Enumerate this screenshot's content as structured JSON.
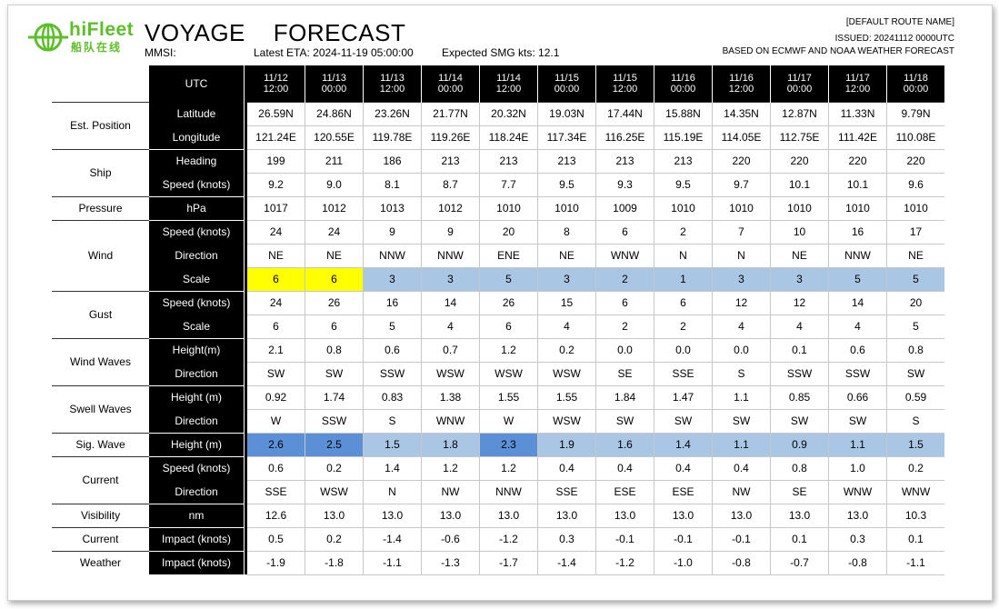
{
  "logo": {
    "brand": "hiFleet",
    "sub": "船队在线"
  },
  "title": "VOYAGE    FORECAST",
  "mmsi_label": "MMSI:",
  "eta": "Latest ETA: 2024-11-19 05:00:00",
  "smg": "Expected SMG kts: 12.1",
  "route_name": "[DEFAULT ROUTE NAME]",
  "issued": "ISSUED: 20241112 0000UTC",
  "basis": "BASED ON ECMWF AND NOAA WEATHER FORECAST",
  "colors": {
    "highlight_yellow": "#ffff00",
    "highlight_blue": "#5b8fd6",
    "light_blue": "#a9c6e4",
    "header_bg": "#000000"
  },
  "table": {
    "utc_label": "UTC",
    "times": [
      [
        "11/12",
        "12:00"
      ],
      [
        "11/13",
        "00:00"
      ],
      [
        "11/13",
        "12:00"
      ],
      [
        "11/14",
        "00:00"
      ],
      [
        "11/14",
        "12:00"
      ],
      [
        "11/15",
        "00:00"
      ],
      [
        "11/15",
        "12:00"
      ],
      [
        "11/16",
        "00:00"
      ],
      [
        "11/16",
        "12:00"
      ],
      [
        "11/17",
        "00:00"
      ],
      [
        "11/17",
        "12:00"
      ],
      [
        "11/18",
        "00:00"
      ]
    ],
    "groups": [
      {
        "name": "Est. Position",
        "rows": [
          {
            "label": "Latitude",
            "values": [
              "26.59N",
              "24.86N",
              "23.26N",
              "21.77N",
              "20.32N",
              "19.03N",
              "17.44N",
              "15.88N",
              "14.35N",
              "12.87N",
              "11.33N",
              "9.79N"
            ]
          },
          {
            "label": "Longitude",
            "values": [
              "121.24E",
              "120.55E",
              "119.78E",
              "119.26E",
              "118.24E",
              "117.34E",
              "116.25E",
              "115.19E",
              "114.05E",
              "112.75E",
              "111.42E",
              "110.08E"
            ]
          }
        ]
      },
      {
        "name": "Ship",
        "rows": [
          {
            "label": "Heading",
            "values": [
              "199",
              "211",
              "186",
              "213",
              "213",
              "213",
              "213",
              "213",
              "220",
              "220",
              "220",
              "220"
            ]
          },
          {
            "label": "Speed (knots)",
            "values": [
              "9.2",
              "9.0",
              "8.1",
              "8.7",
              "7.7",
              "9.5",
              "9.3",
              "9.5",
              "9.7",
              "10.1",
              "10.1",
              "9.6"
            ]
          }
        ]
      },
      {
        "name": "Pressure",
        "rows": [
          {
            "label": "hPa",
            "values": [
              "1017",
              "1012",
              "1013",
              "1012",
              "1010",
              "1010",
              "1009",
              "1010",
              "1010",
              "1010",
              "1010",
              "1010"
            ]
          }
        ]
      },
      {
        "name": "Wind",
        "rows": [
          {
            "label": "Speed (knots)",
            "values": [
              "24",
              "24",
              "9",
              "9",
              "20",
              "8",
              "6",
              "2",
              "7",
              "10",
              "16",
              "17"
            ]
          },
          {
            "label": "Direction",
            "values": [
              "NE",
              "NE",
              "NNW",
              "NNW",
              "ENE",
              "NE",
              "WNW",
              "N",
              "N",
              "NE",
              "NNW",
              "NE"
            ]
          },
          {
            "label": "Scale",
            "values": [
              "6",
              "6",
              "3",
              "3",
              "5",
              "3",
              "2",
              "1",
              "3",
              "3",
              "5",
              "5"
            ],
            "style": "scale",
            "highlight": [
              "yellow",
              "yellow",
              "",
              "",
              "",
              "",
              "",
              "",
              "",
              "",
              "",
              ""
            ]
          }
        ]
      },
      {
        "name": "Gust",
        "rows": [
          {
            "label": "Speed (knots)",
            "values": [
              "24",
              "26",
              "16",
              "14",
              "26",
              "15",
              "6",
              "6",
              "12",
              "12",
              "14",
              "20"
            ]
          },
          {
            "label": "Scale",
            "values": [
              "6",
              "6",
              "5",
              "4",
              "6",
              "4",
              "2",
              "2",
              "4",
              "4",
              "4",
              "5"
            ]
          }
        ]
      },
      {
        "name": "Wind Waves",
        "rows": [
          {
            "label": "Height(m)",
            "values": [
              "2.1",
              "0.8",
              "0.6",
              "0.7",
              "1.2",
              "0.2",
              "0.0",
              "0.0",
              "0.0",
              "0.1",
              "0.6",
              "0.8"
            ]
          },
          {
            "label": "Direction",
            "values": [
              "SW",
              "SW",
              "SSW",
              "WSW",
              "WSW",
              "WSW",
              "SE",
              "SSE",
              "S",
              "SSW",
              "SSW",
              "SW"
            ]
          }
        ]
      },
      {
        "name": "Swell Waves",
        "rows": [
          {
            "label": "Height (m)",
            "values": [
              "0.92",
              "1.74",
              "0.83",
              "1.38",
              "1.55",
              "1.55",
              "1.84",
              "1.47",
              "1.1",
              "0.85",
              "0.66",
              "0.59"
            ]
          },
          {
            "label": "Direction",
            "values": [
              "W",
              "SSW",
              "S",
              "WNW",
              "W",
              "WSW",
              "SW",
              "SW",
              "SW",
              "SW",
              "SW",
              "S"
            ]
          }
        ]
      },
      {
        "name": "Sig. Wave",
        "rows": [
          {
            "label": "Height  (m)",
            "values": [
              "2.6",
              "2.5",
              "1.5",
              "1.8",
              "2.3",
              "1.9",
              "1.6",
              "1.4",
              "1.1",
              "0.9",
              "1.1",
              "1.5"
            ],
            "style": "wave",
            "highlight": [
              "blue",
              "blue",
              "",
              "",
              "blue",
              "",
              "",
              "",
              "",
              "",
              "",
              ""
            ]
          }
        ]
      },
      {
        "name": "Current",
        "rows": [
          {
            "label": "Speed (knots)",
            "values": [
              "0.6",
              "0.2",
              "1.4",
              "1.2",
              "1.2",
              "0.4",
              "0.4",
              "0.4",
              "0.4",
              "0.8",
              "1.0",
              "0.2"
            ]
          },
          {
            "label": "Direction",
            "values": [
              "SSE",
              "WSW",
              "N",
              "NW",
              "NNW",
              "SSE",
              "ESE",
              "ESE",
              "NW",
              "SE",
              "WNW",
              "WNW"
            ]
          }
        ]
      },
      {
        "name": "Visibility",
        "rows": [
          {
            "label": "nm",
            "values": [
              "12.6",
              "13.0",
              "13.0",
              "13.0",
              "13.0",
              "13.0",
              "13.0",
              "13.0",
              "13.0",
              "13.0",
              "13.0",
              "10.3"
            ]
          }
        ]
      },
      {
        "name": "Current",
        "rows": [
          {
            "label": "Impact (knots)",
            "values": [
              "0.5",
              "0.2",
              "-1.4",
              "-0.6",
              "-1.2",
              "0.3",
              "-0.1",
              "-0.1",
              "-0.1",
              "0.1",
              "0.3",
              "0.1"
            ]
          }
        ]
      },
      {
        "name": "Weather",
        "rows": [
          {
            "label": "Impact (knots)",
            "values": [
              "-1.9",
              "-1.8",
              "-1.1",
              "-1.3",
              "-1.7",
              "-1.4",
              "-1.2",
              "-1.0",
              "-0.8",
              "-0.7",
              "-0.8",
              "-1.1"
            ]
          }
        ]
      }
    ]
  }
}
